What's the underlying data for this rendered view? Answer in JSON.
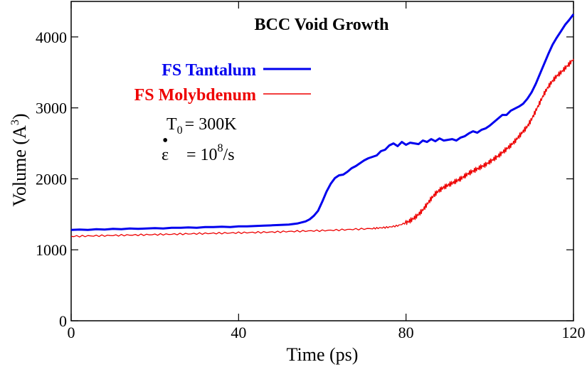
{
  "chart_data": {
    "type": "line",
    "title": "BCC Void Growth",
    "xlabel": "Time (ps)",
    "ylabel_main": "Volume (A",
    "ylabel_sup": "3",
    "ylabel_close": ")",
    "xlim": [
      0,
      120
    ],
    "ylim": [
      0,
      4500
    ],
    "x_ticks": [
      0,
      40,
      80,
      120
    ],
    "y_ticks": [
      0,
      1000,
      2000,
      3000,
      4000
    ],
    "x_tick_labels": [
      "0",
      "40",
      "80",
      "120"
    ],
    "y_tick_labels": [
      "0",
      "1000",
      "2000",
      "3000",
      "4000"
    ],
    "grid": false,
    "legend_position": "upper-left",
    "annotations": {
      "temp_main": "T",
      "temp_sub": "0",
      "temp_value": "= 300K",
      "rate_symbol": "ε",
      "rate_dot": "•",
      "rate_value": "= 10",
      "rate_exp": "8",
      "rate_unit": "/s"
    },
    "series": [
      {
        "name": "FS Tantalum",
        "color": "#0000ee",
        "line_width": "thick",
        "x": [
          0,
          2,
          4,
          6,
          8,
          10,
          12,
          14,
          16,
          18,
          20,
          22,
          24,
          26,
          28,
          30,
          32,
          34,
          36,
          38,
          40,
          42,
          44,
          46,
          48,
          50,
          52,
          54,
          56,
          57,
          58,
          59,
          60,
          61,
          62,
          63,
          64,
          65,
          66,
          67,
          68,
          69,
          70,
          71,
          72,
          73,
          74,
          75,
          76,
          77,
          78,
          79,
          80,
          81,
          82,
          83,
          84,
          85,
          86,
          87,
          88,
          89,
          90,
          91,
          92,
          93,
          94,
          95,
          96,
          97,
          98,
          99,
          100,
          101,
          102,
          103,
          104,
          105,
          106,
          107,
          108,
          109,
          110,
          111,
          112,
          113,
          114,
          115,
          116,
          117,
          118,
          119,
          120
        ],
        "y": [
          1280,
          1285,
          1280,
          1290,
          1285,
          1295,
          1290,
          1300,
          1295,
          1300,
          1305,
          1300,
          1310,
          1310,
          1315,
          1310,
          1320,
          1320,
          1325,
          1320,
          1330,
          1330,
          1335,
          1340,
          1345,
          1350,
          1355,
          1370,
          1400,
          1430,
          1480,
          1550,
          1680,
          1820,
          1930,
          2010,
          2050,
          2060,
          2100,
          2150,
          2180,
          2220,
          2260,
          2290,
          2310,
          2330,
          2390,
          2410,
          2470,
          2500,
          2460,
          2520,
          2480,
          2510,
          2500,
          2490,
          2540,
          2520,
          2560,
          2530,
          2570,
          2540,
          2550,
          2560,
          2540,
          2580,
          2600,
          2640,
          2670,
          2650,
          2690,
          2710,
          2750,
          2800,
          2850,
          2900,
          2900,
          2960,
          2990,
          3020,
          3060,
          3130,
          3220,
          3340,
          3480,
          3620,
          3760,
          3890,
          3990,
          4080,
          4170,
          4240,
          4320
        ]
      },
      {
        "name": "FS Molybdenum",
        "color": "#ee0000",
        "line_width": "thin",
        "x": [
          0,
          4,
          8,
          12,
          16,
          20,
          24,
          28,
          32,
          36,
          40,
          44,
          48,
          52,
          56,
          60,
          64,
          68,
          72,
          74,
          76,
          78,
          80,
          81,
          82,
          83,
          84,
          85,
          86,
          87,
          88,
          89,
          90,
          91,
          92,
          93,
          94,
          95,
          96,
          97,
          98,
          99,
          100,
          101,
          102,
          103,
          104,
          105,
          106,
          107,
          108,
          109,
          110,
          111,
          112,
          113,
          114,
          115,
          116,
          117,
          118,
          119,
          120
        ],
        "y": [
          1190,
          1195,
          1200,
          1205,
          1210,
          1215,
          1220,
          1225,
          1230,
          1235,
          1240,
          1245,
          1250,
          1258,
          1265,
          1270,
          1280,
          1290,
          1300,
          1310,
          1320,
          1340,
          1380,
          1410,
          1450,
          1500,
          1560,
          1640,
          1720,
          1790,
          1840,
          1880,
          1910,
          1940,
          1970,
          2000,
          2040,
          2080,
          2110,
          2140,
          2170,
          2200,
          2240,
          2280,
          2320,
          2370,
          2420,
          2470,
          2530,
          2600,
          2670,
          2740,
          2840,
          2960,
          3080,
          3200,
          3300,
          3380,
          3450,
          3500,
          3560,
          3620,
          3690
        ]
      }
    ]
  }
}
